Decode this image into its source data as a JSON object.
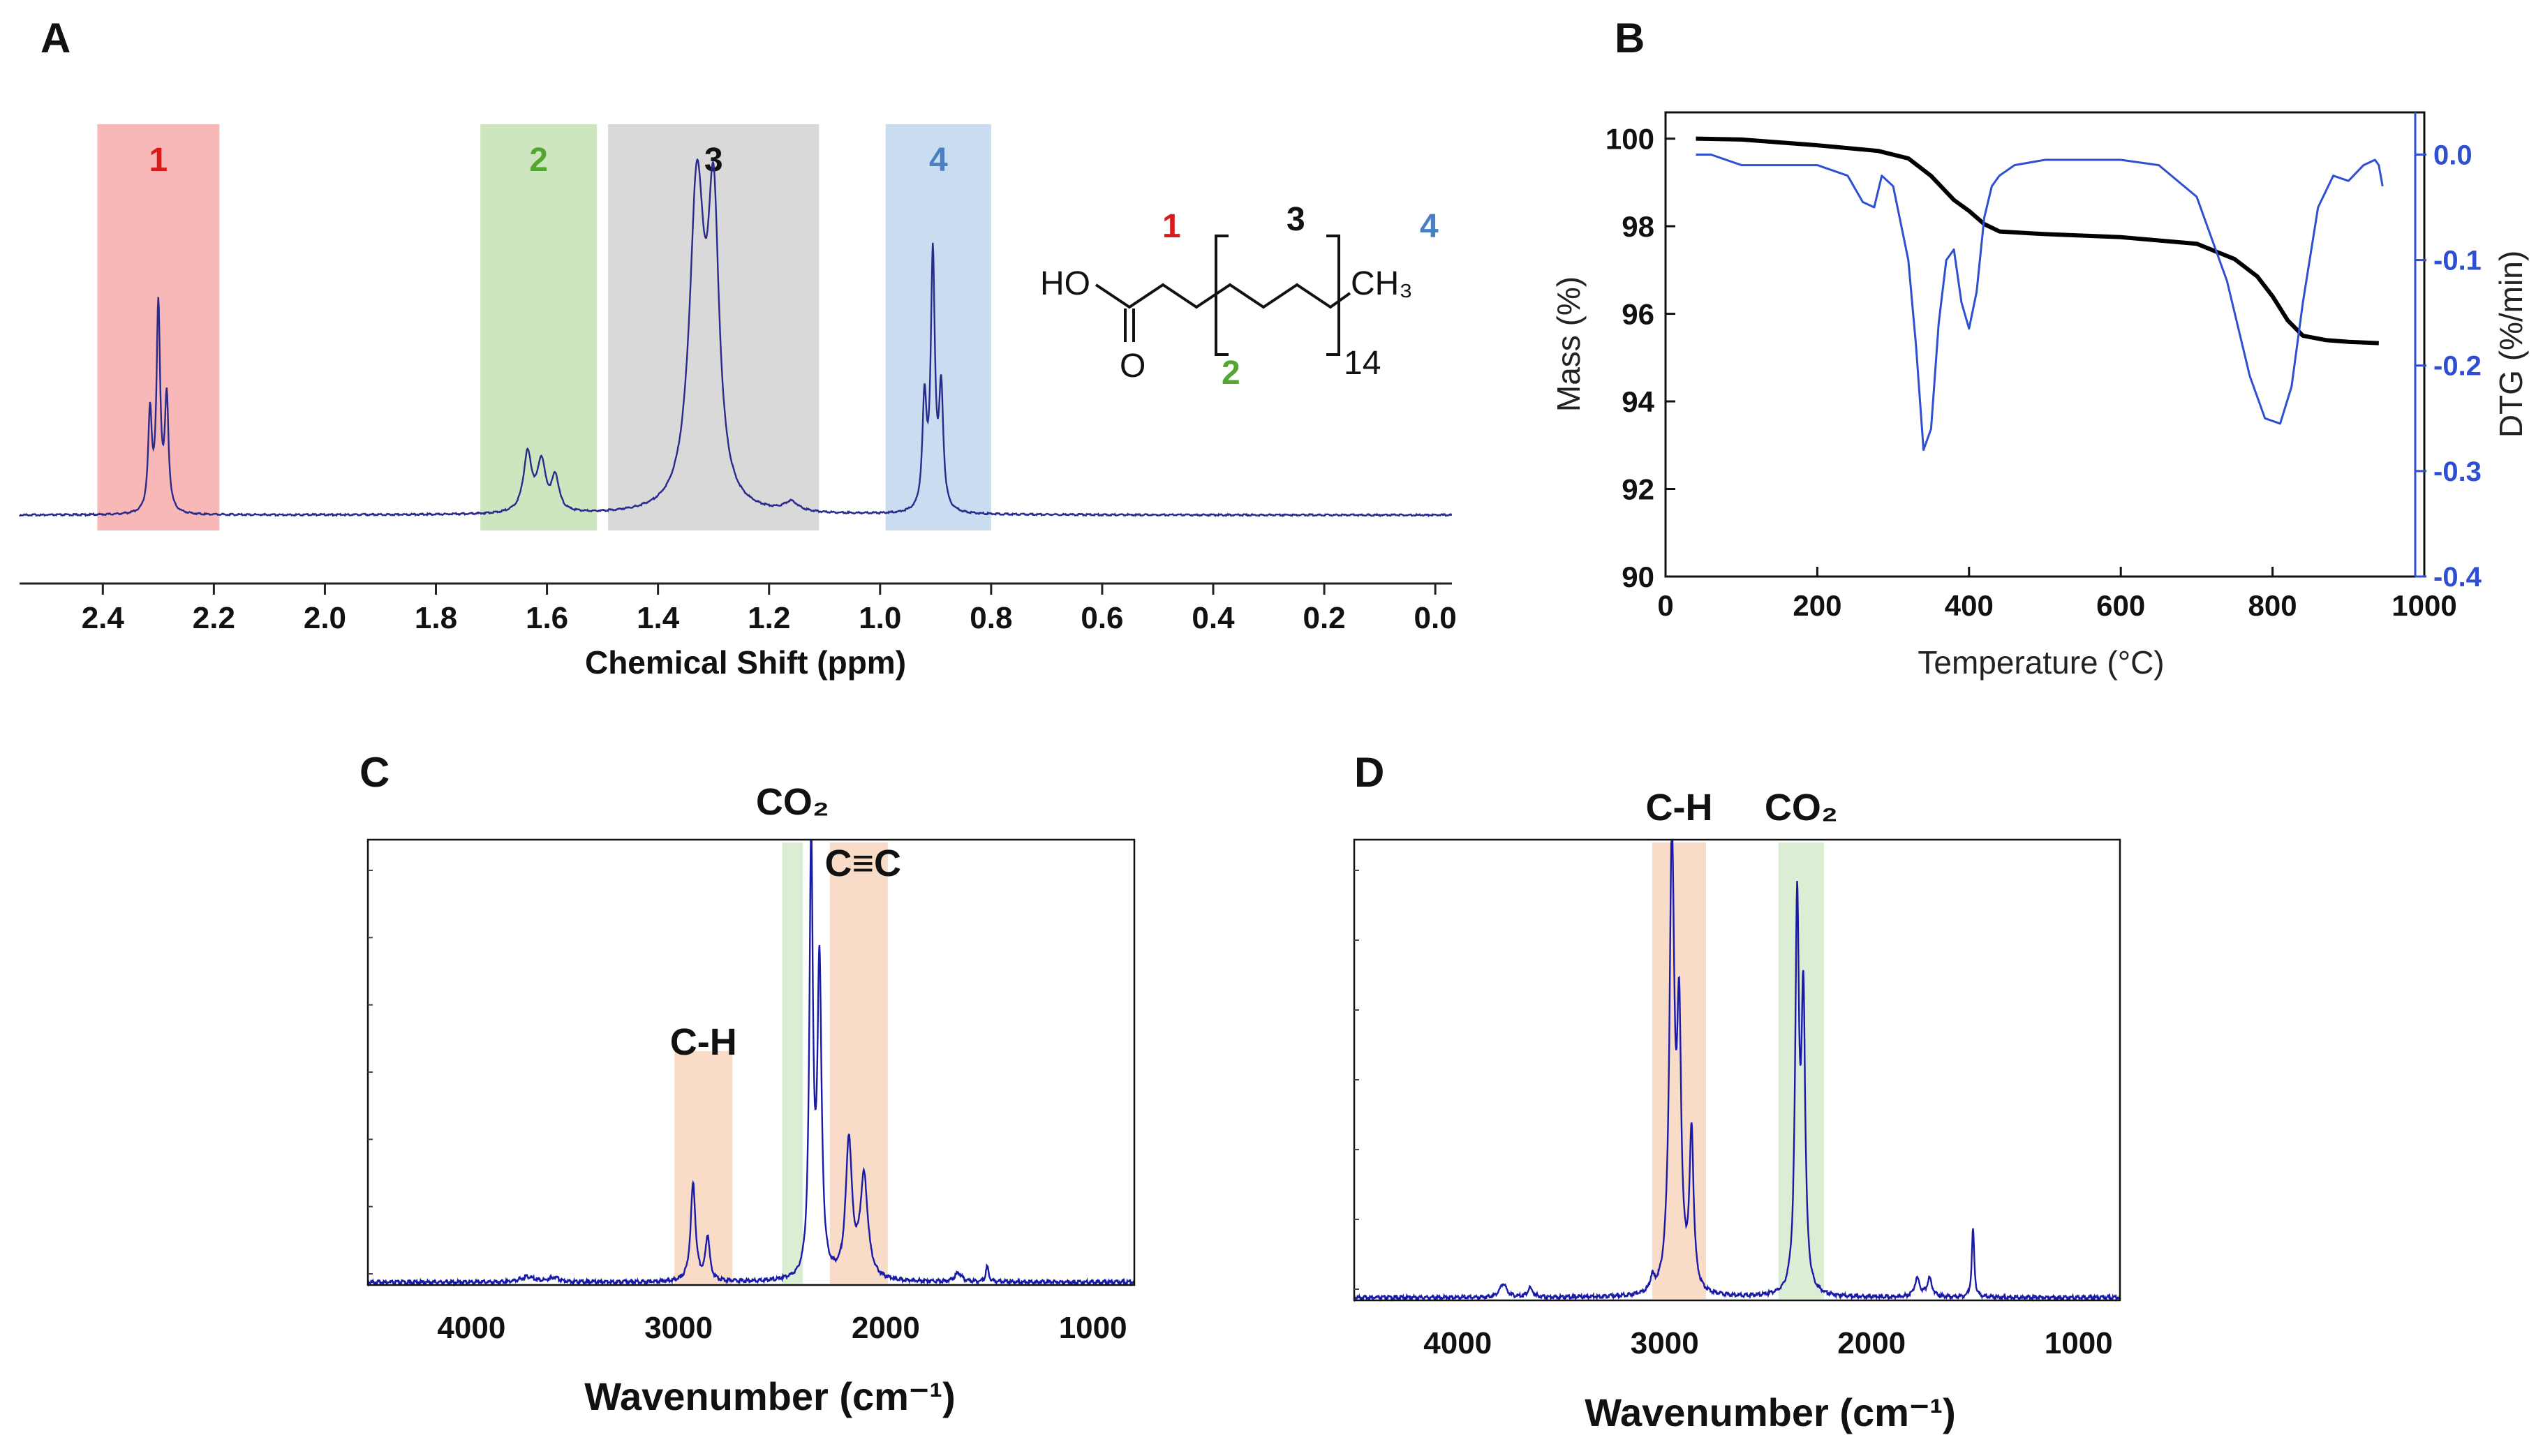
{
  "figure": {
    "panels": [
      "A",
      "B",
      "C",
      "D"
    ]
  },
  "molecule": {
    "ho": "HO",
    "o": "O",
    "ch3": "CH₃",
    "repeat": "14",
    "labels": [
      {
        "text": "1",
        "color": "#d81b1b"
      },
      {
        "text": "2",
        "color": "#55a532"
      },
      {
        "text": "3",
        "color": "#111111"
      },
      {
        "text": "4",
        "color": "#4a7fc1"
      }
    ]
  },
  "chart_data": [
    {
      "id": "A",
      "type": "line",
      "title": "",
      "xlabel": "Chemical Shift (ppm)",
      "ylabel": "",
      "xlim": [
        2.55,
        -0.03
      ],
      "x_ticks": [
        "2.4",
        "2.2",
        "2.0",
        "1.8",
        "1.6",
        "1.4",
        "1.2",
        "1.0",
        "0.8",
        "0.6",
        "0.4",
        "0.2",
        "0.0"
      ],
      "x_tick_values": [
        2.4,
        2.2,
        2.0,
        1.8,
        1.6,
        1.4,
        1.2,
        1.0,
        0.8,
        0.6,
        0.4,
        0.2,
        0.0
      ],
      "line_color": "#2a2a8c",
      "bands": [
        {
          "label": "1",
          "range": [
            2.41,
            2.19
          ],
          "color": "#f9b8b8",
          "label_color": "#d81b1b"
        },
        {
          "label": "2",
          "range": [
            1.72,
            1.51
          ],
          "color": "#cde6bf",
          "label_color": "#55a532"
        },
        {
          "label": "3",
          "range": [
            1.49,
            1.11
          ],
          "color": "#d9d9d9",
          "label_color": "#111111"
        },
        {
          "label": "4",
          "range": [
            0.99,
            0.8
          ],
          "color": "#c9dcf0",
          "label_color": "#4a7fc1"
        }
      ],
      "peaks": [
        {
          "center": 2.315,
          "height": 0.2,
          "width": 0.004
        },
        {
          "center": 2.3,
          "height": 0.42,
          "width": 0.004
        },
        {
          "center": 2.285,
          "height": 0.23,
          "width": 0.004
        },
        {
          "center": 1.635,
          "height": 0.12,
          "width": 0.009
        },
        {
          "center": 1.61,
          "height": 0.1,
          "width": 0.009
        },
        {
          "center": 1.585,
          "height": 0.07,
          "width": 0.008
        },
        {
          "center": 1.33,
          "height": 0.65,
          "width": 0.016
        },
        {
          "center": 1.3,
          "height": 0.58,
          "width": 0.012
        },
        {
          "center": 1.16,
          "height": 0.02,
          "width": 0.015
        },
        {
          "center": 0.92,
          "height": 0.22,
          "width": 0.0045
        },
        {
          "center": 0.905,
          "height": 0.52,
          "width": 0.0045
        },
        {
          "center": 0.89,
          "height": 0.24,
          "width": 0.0045
        }
      ]
    },
    {
      "id": "B",
      "type": "line",
      "title": "",
      "xlabel": "Temperature (°C)",
      "ylabel": "Mass (%)",
      "y2label": "DTG (%/min)",
      "xlim": [
        0,
        1000
      ],
      "ylim": [
        90,
        100.6
      ],
      "y2lim": [
        -0.4,
        0.04
      ],
      "x_ticks": [
        "0",
        "200",
        "400",
        "600",
        "800",
        "1000"
      ],
      "x_tick_values": [
        0,
        200,
        400,
        600,
        800,
        1000
      ],
      "y_ticks": [
        "90",
        "92",
        "94",
        "96",
        "98",
        "100"
      ],
      "y_tick_values": [
        90,
        92,
        94,
        96,
        98,
        100
      ],
      "y2_ticks": [
        "0.0",
        "-0.1",
        "-0.2",
        "-0.3",
        "-0.4"
      ],
      "y2_tick_values": [
        0.0,
        -0.1,
        -0.2,
        -0.3,
        -0.4
      ],
      "series": [
        {
          "name": "Mass",
          "axis": "left",
          "color": "#000000",
          "x": [
            40,
            100,
            200,
            280,
            320,
            350,
            380,
            400,
            420,
            440,
            500,
            600,
            700,
            750,
            780,
            800,
            820,
            840,
            870,
            900,
            940
          ],
          "values": [
            100.0,
            99.98,
            99.85,
            99.72,
            99.55,
            99.15,
            98.6,
            98.35,
            98.05,
            97.88,
            97.82,
            97.75,
            97.6,
            97.25,
            96.85,
            96.4,
            95.85,
            95.5,
            95.4,
            95.36,
            95.33
          ]
        },
        {
          "name": "DTG",
          "axis": "right",
          "color": "#2f4fd1",
          "x": [
            40,
            60,
            100,
            130,
            200,
            240,
            260,
            275,
            285,
            300,
            320,
            330,
            340,
            350,
            360,
            370,
            380,
            390,
            400,
            410,
            420,
            430,
            440,
            460,
            500,
            550,
            600,
            650,
            700,
            740,
            770,
            790,
            810,
            825,
            840,
            860,
            880,
            900,
            920,
            935,
            940,
            945
          ],
          "values": [
            0.0,
            0.0,
            -0.01,
            -0.01,
            -0.01,
            -0.02,
            -0.045,
            -0.05,
            -0.02,
            -0.03,
            -0.1,
            -0.18,
            -0.28,
            -0.26,
            -0.16,
            -0.1,
            -0.09,
            -0.14,
            -0.165,
            -0.13,
            -0.06,
            -0.03,
            -0.02,
            -0.01,
            -0.005,
            -0.005,
            -0.005,
            -0.01,
            -0.04,
            -0.12,
            -0.21,
            -0.25,
            -0.255,
            -0.22,
            -0.14,
            -0.05,
            -0.02,
            -0.025,
            -0.01,
            -0.005,
            -0.01,
            -0.03
          ]
        }
      ]
    },
    {
      "id": "C",
      "type": "line",
      "title": "",
      "xlabel": "Wavenumber (cm⁻¹)",
      "ylabel": "",
      "xlim": [
        4500,
        800
      ],
      "x_ticks": [
        "4000",
        "3000",
        "2000",
        "1000"
      ],
      "x_tick_values": [
        4000,
        3000,
        2000,
        1000
      ],
      "line_color": "#1a1aa8",
      "bands": [
        {
          "label": "C-H",
          "range": [
            3020,
            2740
          ],
          "color": "#f8dcc8"
        },
        {
          "label": "CO₂",
          "range": [
            2500,
            2400
          ],
          "color": "#dbeed3"
        },
        {
          "label": "C≡C",
          "range": [
            2270,
            1990
          ],
          "color": "#f8dcc8"
        }
      ],
      "peaks": [
        {
          "center": 2930,
          "height": 0.22,
          "width": 14
        },
        {
          "center": 2860,
          "height": 0.1,
          "width": 12
        },
        {
          "center": 2360,
          "height": 0.99,
          "width": 10
        },
        {
          "center": 2320,
          "height": 0.7,
          "width": 12
        },
        {
          "center": 2178,
          "height": 0.31,
          "width": 18
        },
        {
          "center": 2105,
          "height": 0.23,
          "width": 22
        },
        {
          "center": 3730,
          "height": 0.012,
          "width": 40
        },
        {
          "center": 3600,
          "height": 0.01,
          "width": 30
        },
        {
          "center": 1650,
          "height": 0.02,
          "width": 20
        },
        {
          "center": 1510,
          "height": 0.035,
          "width": 8
        }
      ]
    },
    {
      "id": "D",
      "type": "line",
      "title": "",
      "xlabel": "Wavenumber (cm⁻¹)",
      "ylabel": "",
      "xlim": [
        4500,
        800
      ],
      "x_ticks": [
        "4000",
        "3000",
        "2000",
        "1000"
      ],
      "x_tick_values": [
        4000,
        3000,
        2000,
        1000
      ],
      "line_color": "#1a1aa8",
      "bands": [
        {
          "label": "C-H",
          "range": [
            3060,
            2800
          ],
          "color": "#f8dcc8"
        },
        {
          "label": "CO₂",
          "range": [
            2450,
            2230
          ],
          "color": "#dbeed3"
        }
      ],
      "peaks": [
        {
          "center": 2965,
          "height": 0.98,
          "width": 14
        },
        {
          "center": 2930,
          "height": 0.55,
          "width": 12
        },
        {
          "center": 2870,
          "height": 0.34,
          "width": 12
        },
        {
          "center": 3060,
          "height": 0.03,
          "width": 10
        },
        {
          "center": 2360,
          "height": 0.84,
          "width": 11
        },
        {
          "center": 2330,
          "height": 0.62,
          "width": 11
        },
        {
          "center": 3780,
          "height": 0.03,
          "width": 20
        },
        {
          "center": 3650,
          "height": 0.02,
          "width": 15
        },
        {
          "center": 1780,
          "height": 0.04,
          "width": 15
        },
        {
          "center": 1720,
          "height": 0.04,
          "width": 15
        },
        {
          "center": 1510,
          "height": 0.15,
          "width": 7
        }
      ]
    }
  ]
}
